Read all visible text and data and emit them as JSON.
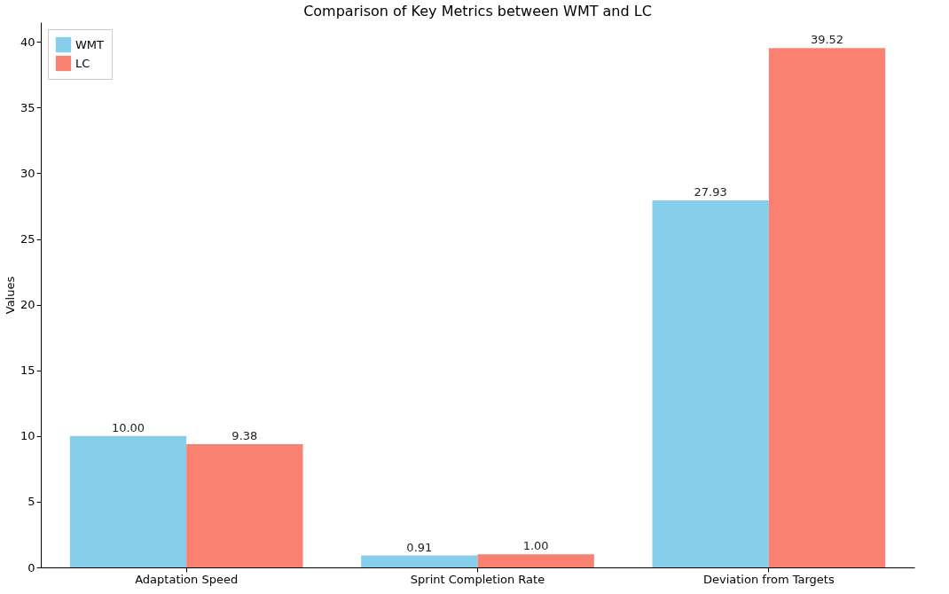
{
  "chart_data": {
    "type": "bar",
    "title": "Comparison of Key Metrics between WMT and LC",
    "ylabel": "Values",
    "categories": [
      "Adaptation Speed",
      "Sprint Completion Rate",
      "Deviation from Targets"
    ],
    "series": [
      {
        "name": "WMT",
        "color": "#87ceeb",
        "values": [
          10.0,
          0.91,
          27.93
        ],
        "value_labels": [
          "10.00",
          "0.91",
          "27.93"
        ]
      },
      {
        "name": "LC",
        "color": "#fa8072",
        "values": [
          9.38,
          1.0,
          39.52
        ],
        "value_labels": [
          "9.38",
          "1.00",
          "39.52"
        ]
      }
    ],
    "ylim": [
      0,
      41.5
    ],
    "yticks": [
      0,
      5,
      10,
      15,
      20,
      25,
      30,
      35,
      40
    ],
    "grid": false,
    "legend": "top left"
  }
}
